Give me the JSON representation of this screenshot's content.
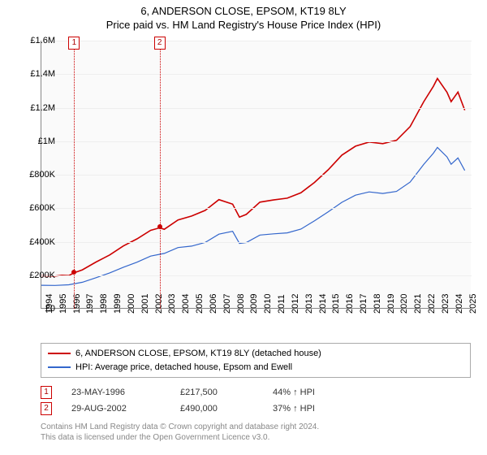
{
  "title1": "6, ANDERSON CLOSE, EPSOM, KT19 8LY",
  "title2": "Price paid vs. HM Land Registry's House Price Index (HPI)",
  "chart": {
    "type": "line",
    "xlim": [
      1994,
      2025.5
    ],
    "ylim": [
      0,
      1600000
    ],
    "ytick_step": 200000,
    "yticks": [
      "£0",
      "£200K",
      "£400K",
      "£600K",
      "£800K",
      "£1M",
      "£1.2M",
      "£1.4M",
      "£1.6M"
    ],
    "xticks": [
      1994,
      1995,
      1996,
      1997,
      1998,
      1999,
      2000,
      2001,
      2002,
      2003,
      2004,
      2005,
      2006,
      2007,
      2008,
      2009,
      2010,
      2011,
      2012,
      2013,
      2014,
      2015,
      2016,
      2017,
      2018,
      2019,
      2020,
      2021,
      2022,
      2023,
      2024,
      2025
    ],
    "background_color": "#fafafa",
    "grid_color": "#eeeeee",
    "series": [
      {
        "name": "6, ANDERSON CLOSE, EPSOM, KT19 8LY (detached house)",
        "color": "#cc0000",
        "line_width": 1.6,
        "data": [
          [
            1994,
            197000
          ],
          [
            1995,
            195000
          ],
          [
            1995.5,
            200000
          ],
          [
            1996,
            198000
          ],
          [
            1996.4,
            215000
          ],
          [
            1997,
            232000
          ],
          [
            1998,
            279000
          ],
          [
            1999,
            321000
          ],
          [
            2000,
            375000
          ],
          [
            2001,
            417000
          ],
          [
            2002,
            468000
          ],
          [
            2002.66,
            483000
          ],
          [
            2003,
            474000
          ],
          [
            2004,
            530000
          ],
          [
            2005,
            553000
          ],
          [
            2006,
            587000
          ],
          [
            2007,
            651000
          ],
          [
            2008,
            624000
          ],
          [
            2008.5,
            547000
          ],
          [
            2009,
            563000
          ],
          [
            2010,
            636000
          ],
          [
            2011,
            649000
          ],
          [
            2012,
            660000
          ],
          [
            2013,
            692000
          ],
          [
            2014,
            754000
          ],
          [
            2015,
            829000
          ],
          [
            2016,
            917000
          ],
          [
            2017,
            970000
          ],
          [
            2018,
            995000
          ],
          [
            2019,
            985000
          ],
          [
            2020,
            1005000
          ],
          [
            2021,
            1087000
          ],
          [
            2022,
            1236000
          ],
          [
            2022.7,
            1327000
          ],
          [
            2023,
            1374000
          ],
          [
            2023.7,
            1292000
          ],
          [
            2024,
            1236000
          ],
          [
            2024.5,
            1293000
          ],
          [
            2025,
            1185000
          ]
        ]
      },
      {
        "name": "HPI: Average price, detached house, Epsom and Ewell",
        "color": "#3366cc",
        "line_width": 1.2,
        "data": [
          [
            1994,
            140000
          ],
          [
            1995,
            139000
          ],
          [
            1996,
            143000
          ],
          [
            1997,
            158000
          ],
          [
            1998,
            185000
          ],
          [
            1999,
            214000
          ],
          [
            2000,
            248000
          ],
          [
            2001,
            278000
          ],
          [
            2002,
            314000
          ],
          [
            2003,
            330000
          ],
          [
            2004,
            365000
          ],
          [
            2005,
            374000
          ],
          [
            2006,
            396000
          ],
          [
            2007,
            445000
          ],
          [
            2008,
            462000
          ],
          [
            2008.5,
            390000
          ],
          [
            2009,
            395000
          ],
          [
            2010,
            440000
          ],
          [
            2011,
            447000
          ],
          [
            2012,
            453000
          ],
          [
            2013,
            475000
          ],
          [
            2014,
            525000
          ],
          [
            2015,
            578000
          ],
          [
            2016,
            635000
          ],
          [
            2017,
            678000
          ],
          [
            2018,
            697000
          ],
          [
            2019,
            688000
          ],
          [
            2020,
            700000
          ],
          [
            2021,
            756000
          ],
          [
            2022,
            862000
          ],
          [
            2022.7,
            928000
          ],
          [
            2023,
            963000
          ],
          [
            2023.7,
            906000
          ],
          [
            2024,
            862000
          ],
          [
            2024.5,
            900000
          ],
          [
            2025,
            825000
          ]
        ]
      }
    ],
    "markers": [
      {
        "label": "1",
        "x": 1996.4,
        "y": 217500,
        "color": "#cc0000"
      },
      {
        "label": "2",
        "x": 2002.66,
        "y": 490000,
        "color": "#cc0000"
      }
    ]
  },
  "legend": {
    "rows": [
      {
        "color": "#cc0000",
        "label": "6, ANDERSON CLOSE, EPSOM, KT19 8LY (detached house)"
      },
      {
        "color": "#3366cc",
        "label": "HPI: Average price, detached house, Epsom and Ewell"
      }
    ]
  },
  "transactions": [
    {
      "badge": "1",
      "badge_color": "#cc0000",
      "date": "23-MAY-1996",
      "price": "£217,500",
      "pct": "44% ↑ HPI"
    },
    {
      "badge": "2",
      "badge_color": "#cc0000",
      "date": "29-AUG-2002",
      "price": "£490,000",
      "pct": "37% ↑ HPI"
    }
  ],
  "footer": {
    "line1": "Contains HM Land Registry data © Crown copyright and database right 2024.",
    "line2": "This data is licensed under the Open Government Licence v3.0."
  }
}
